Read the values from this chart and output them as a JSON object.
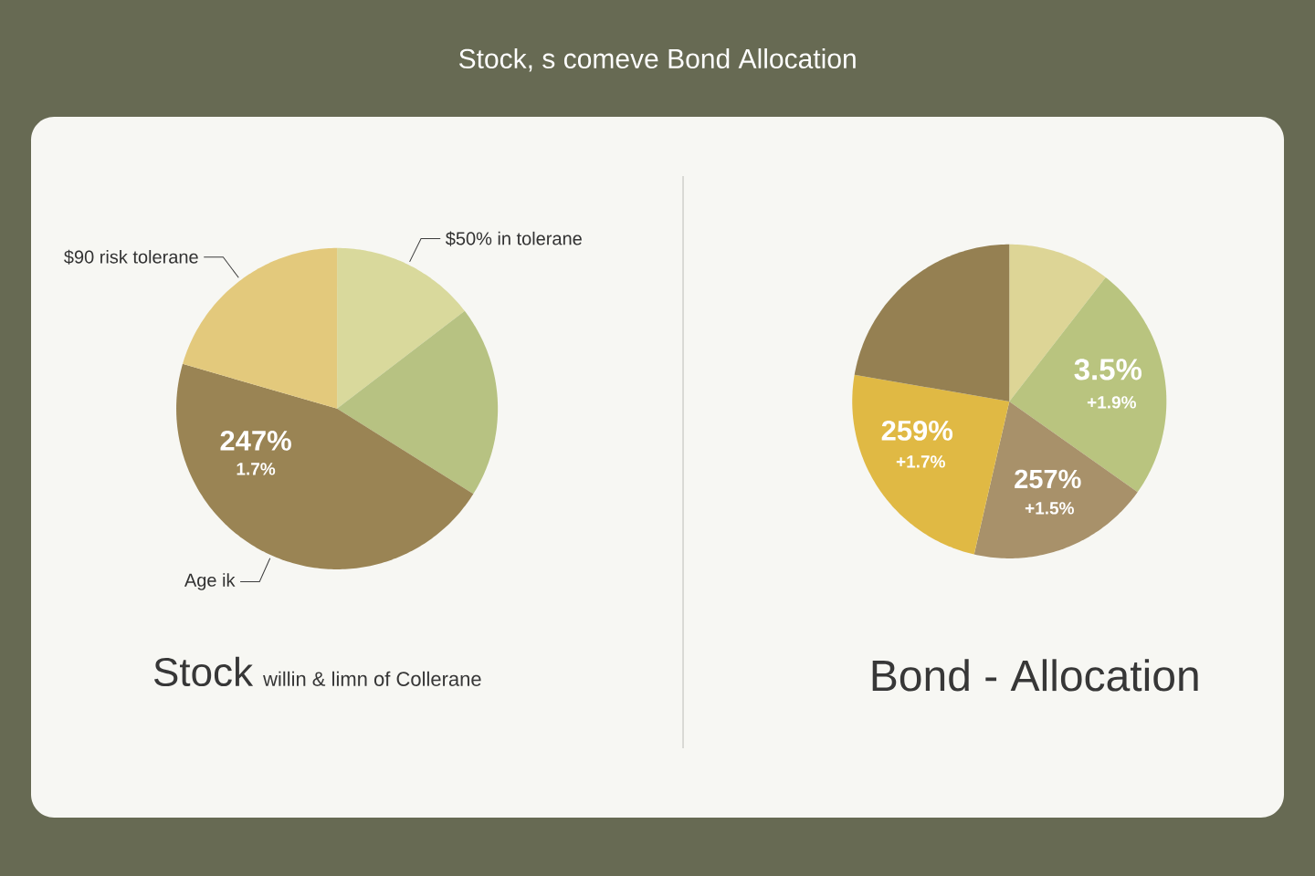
{
  "chart_data": [
    {
      "type": "pie",
      "title": "Stock, s comeve Bond Allocation",
      "xlabel": "Stock",
      "subtitle": "willin & limn of Collerane",
      "categories": [
        "$50% in tolerane",
        null,
        "Age ik",
        "$90 risk tolerane"
      ],
      "values": [
        14.6,
        19.3,
        45.6,
        20.5
      ],
      "colors": [
        "#d9d99c",
        "#b7c282",
        "#9a8454",
        "#e3c97c"
      ],
      "annotations": [
        "247%",
        "1.7%"
      ]
    },
    {
      "type": "pie",
      "xlabel": "Bond - Allocation",
      "categories": [
        null,
        null,
        null,
        null,
        null
      ],
      "values": [
        10.5,
        24.3,
        18.8,
        24.1,
        22.3
      ],
      "colors": [
        "#ddd596",
        "#b9c47f",
        "#a8916a",
        "#e0b944",
        "#958052"
      ],
      "annotations": [
        "3.5%",
        "+1.9%",
        "257%",
        "+1.5%",
        "259%",
        "+1.7%"
      ]
    }
  ]
}
